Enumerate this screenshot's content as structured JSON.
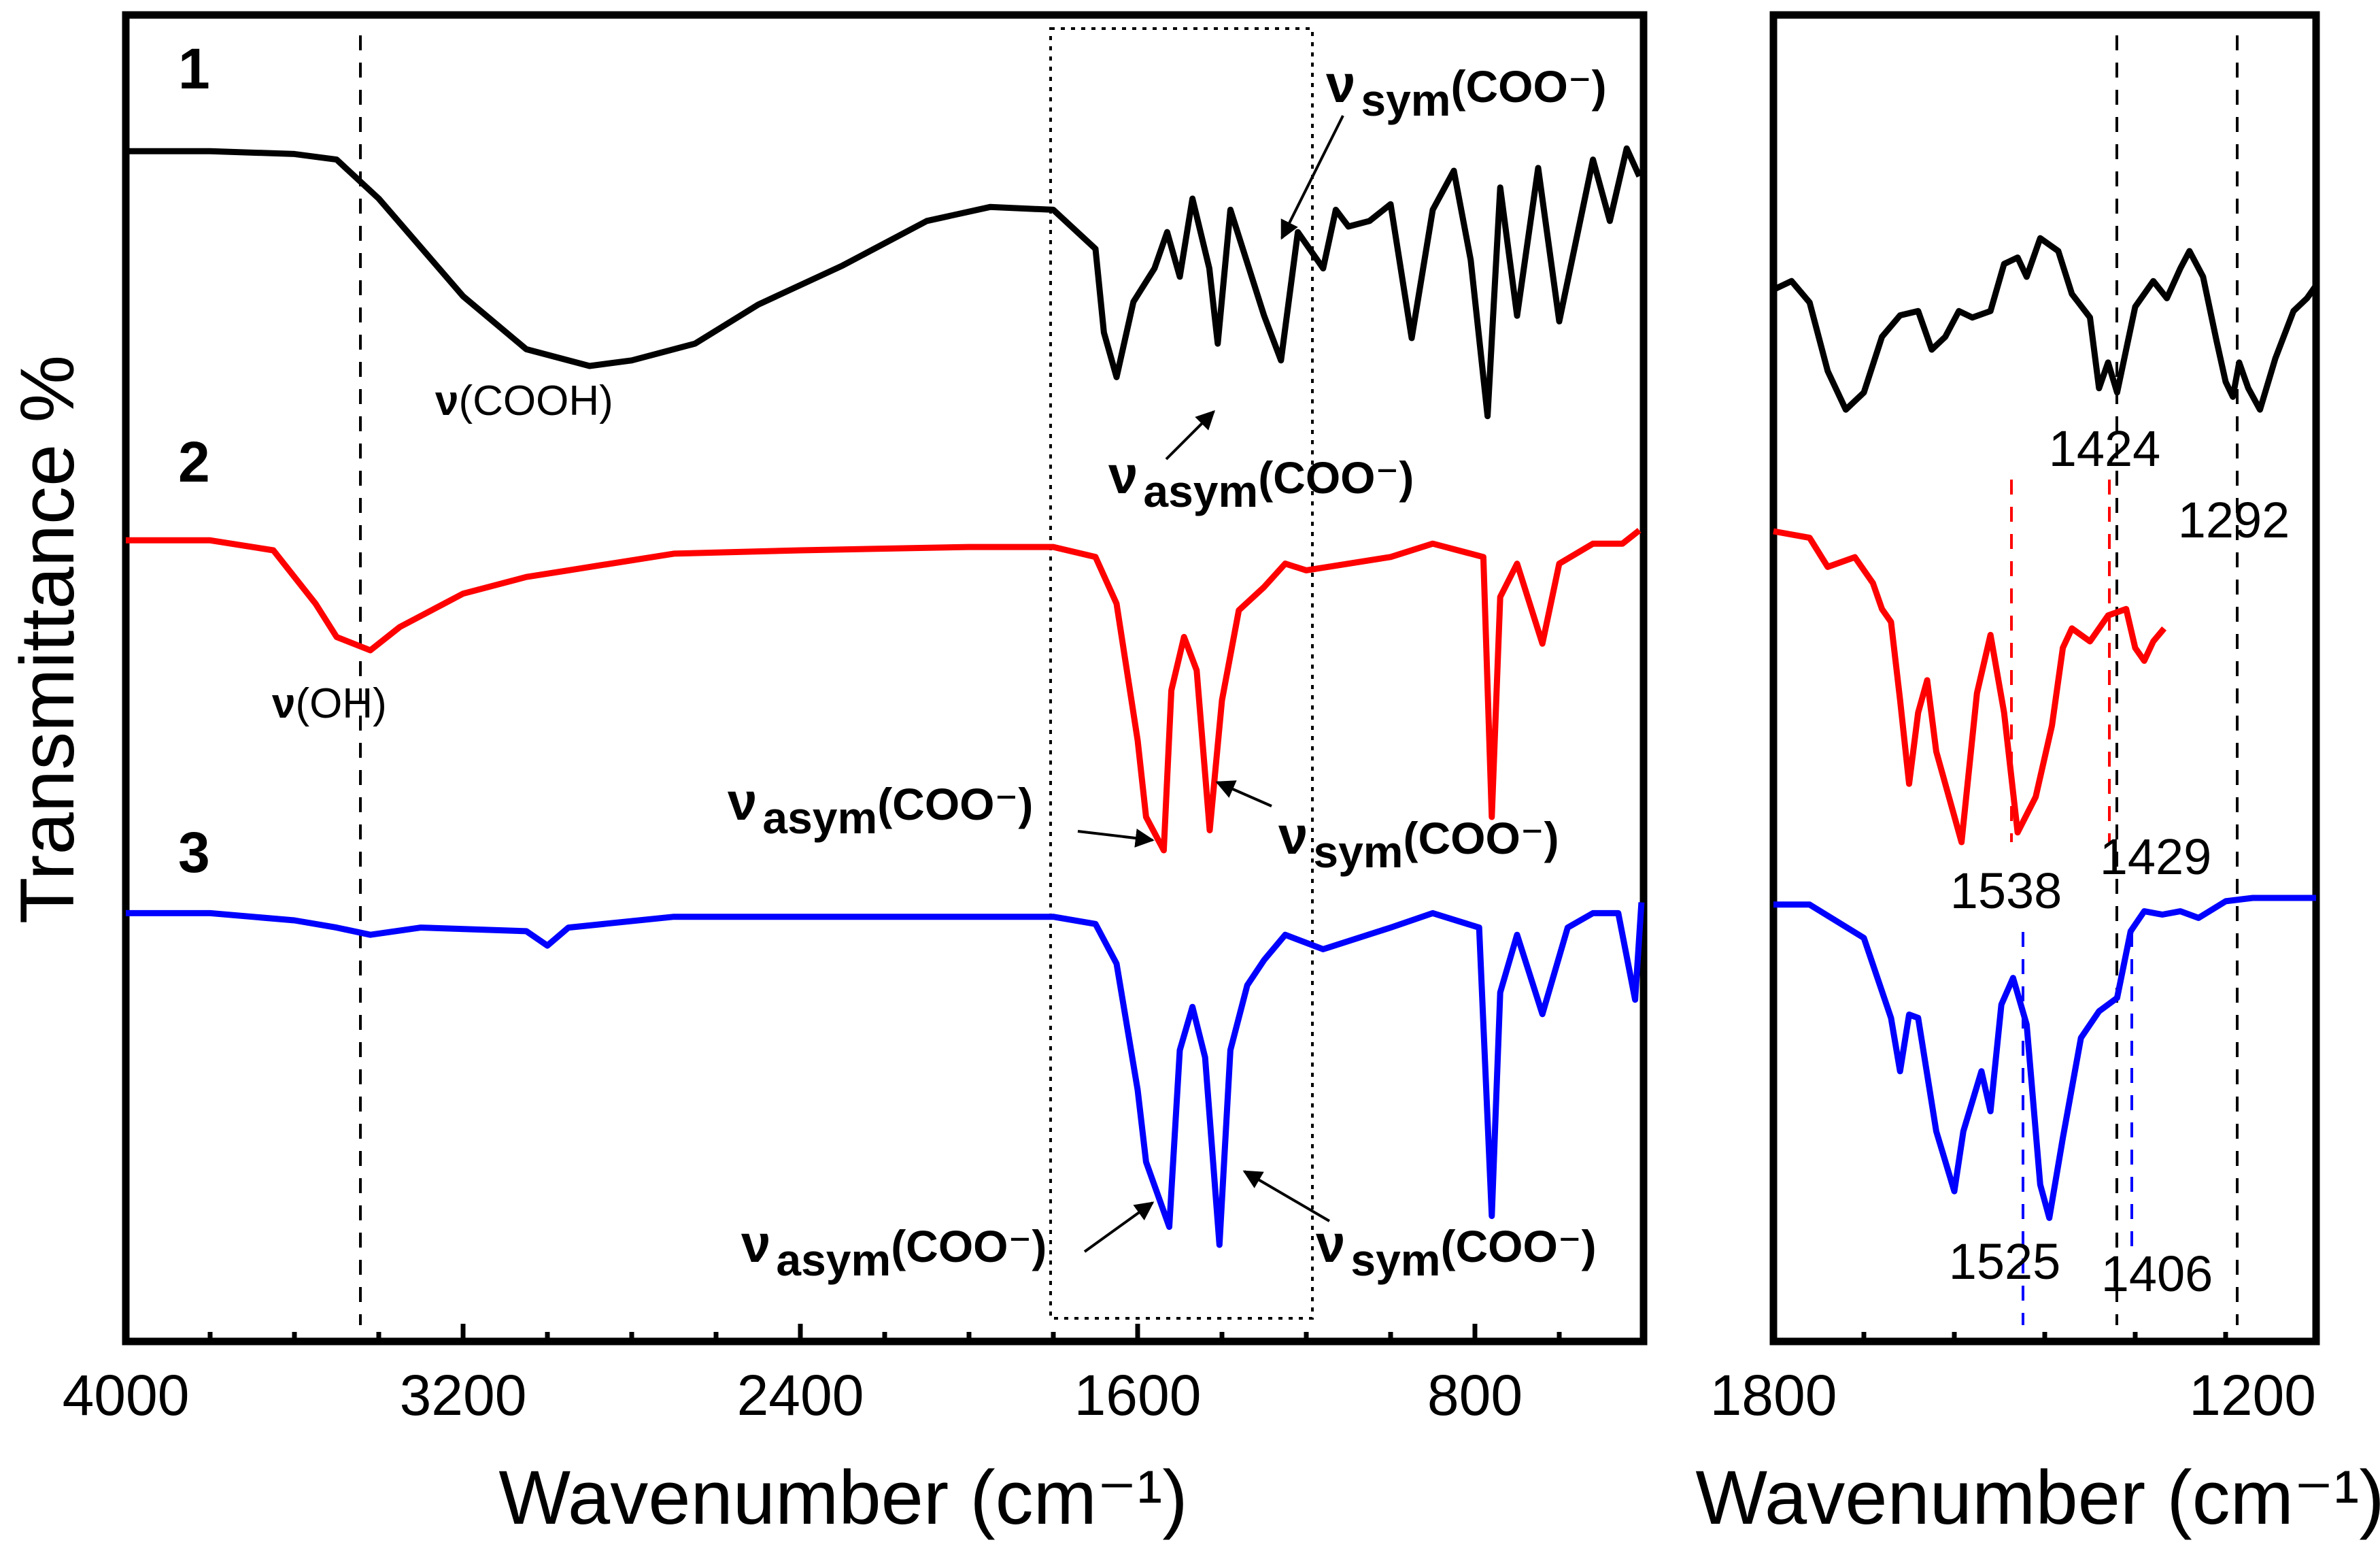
{
  "chart_data": [
    {
      "type": "line",
      "title": "",
      "xlabel": "Wavenumber (cm⁻¹)",
      "ylabel": "Transmittance %",
      "xlim": [
        4000,
        400
      ],
      "x_reversed": true,
      "y_ticks_shown": false,
      "xticks": [
        "4000",
        "3200",
        "2400",
        "1600",
        "800"
      ],
      "series": [
        {
          "name": "1",
          "color": "#000000",
          "points": [
            [
              4000,
              0.97
            ],
            [
              3800,
              0.97
            ],
            [
              3600,
              0.96
            ],
            [
              3500,
              0.94
            ],
            [
              3400,
              0.8
            ],
            [
              3200,
              0.45
            ],
            [
              3050,
              0.26
            ],
            [
              2900,
              0.2
            ],
            [
              2800,
              0.22
            ],
            [
              2650,
              0.28
            ],
            [
              2500,
              0.42
            ],
            [
              2300,
              0.56
            ],
            [
              2100,
              0.72
            ],
            [
              1950,
              0.77
            ],
            [
              1800,
              0.76
            ],
            [
              1700,
              0.62
            ],
            [
              1680,
              0.32
            ],
            [
              1650,
              0.16
            ],
            [
              1610,
              0.43
            ],
            [
              1560,
              0.55
            ],
            [
              1530,
              0.68
            ],
            [
              1500,
              0.52
            ],
            [
              1470,
              0.8
            ],
            [
              1430,
              0.55
            ],
            [
              1410,
              0.28
            ],
            [
              1380,
              0.76
            ],
            [
              1300,
              0.38
            ],
            [
              1260,
              0.22
            ],
            [
              1220,
              0.68
            ],
            [
              1160,
              0.55
            ],
            [
              1130,
              0.76
            ],
            [
              1100,
              0.7
            ],
            [
              1050,
              0.72
            ],
            [
              1000,
              0.78
            ],
            [
              950,
              0.3
            ],
            [
              900,
              0.76
            ],
            [
              850,
              0.9
            ],
            [
              810,
              0.58
            ],
            [
              770,
              0.02
            ],
            [
              740,
              0.84
            ],
            [
              700,
              0.38
            ],
            [
              650,
              0.91
            ],
            [
              600,
              0.36
            ],
            [
              520,
              0.94
            ],
            [
              480,
              0.72
            ],
            [
              440,
              0.98
            ],
            [
              410,
              0.88
            ]
          ]
        },
        {
          "name": "2",
          "color": "#ff0000",
          "points": [
            [
              4000,
              0.93
            ],
            [
              3800,
              0.93
            ],
            [
              3650,
              0.9
            ],
            [
              3550,
              0.74
            ],
            [
              3500,
              0.64
            ],
            [
              3420,
              0.6
            ],
            [
              3350,
              0.67
            ],
            [
              3200,
              0.77
            ],
            [
              3050,
              0.82
            ],
            [
              2950,
              0.84
            ],
            [
              2700,
              0.89
            ],
            [
              2400,
              0.9
            ],
            [
              2000,
              0.91
            ],
            [
              1800,
              0.91
            ],
            [
              1700,
              0.88
            ],
            [
              1650,
              0.74
            ],
            [
              1600,
              0.33
            ],
            [
              1580,
              0.1
            ],
            [
              1538,
              0.0
            ],
            [
              1520,
              0.48
            ],
            [
              1490,
              0.64
            ],
            [
              1460,
              0.54
            ],
            [
              1429,
              0.06
            ],
            [
              1400,
              0.45
            ],
            [
              1360,
              0.72
            ],
            [
              1300,
              0.79
            ],
            [
              1250,
              0.86
            ],
            [
              1200,
              0.84
            ],
            [
              1000,
              0.88
            ],
            [
              900,
              0.92
            ],
            [
              780,
              0.88
            ],
            [
              760,
              0.1
            ],
            [
              740,
              0.76
            ],
            [
              700,
              0.86
            ],
            [
              640,
              0.62
            ],
            [
              600,
              0.86
            ],
            [
              520,
              0.92
            ],
            [
              450,
              0.92
            ],
            [
              410,
              0.96
            ]
          ]
        },
        {
          "name": "3",
          "color": "#0000ff",
          "points": [
            [
              4000,
              0.92
            ],
            [
              3800,
              0.92
            ],
            [
              3600,
              0.9
            ],
            [
              3500,
              0.88
            ],
            [
              3420,
              0.86
            ],
            [
              3300,
              0.88
            ],
            [
              3050,
              0.87
            ],
            [
              3000,
              0.83
            ],
            [
              2950,
              0.88
            ],
            [
              2700,
              0.91
            ],
            [
              2400,
              0.91
            ],
            [
              2000,
              0.91
            ],
            [
              1800,
              0.91
            ],
            [
              1700,
              0.89
            ],
            [
              1650,
              0.78
            ],
            [
              1600,
              0.43
            ],
            [
              1580,
              0.23
            ],
            [
              1525,
              0.05
            ],
            [
              1500,
              0.54
            ],
            [
              1470,
              0.66
            ],
            [
              1440,
              0.52
            ],
            [
              1406,
              0.0
            ],
            [
              1380,
              0.54
            ],
            [
              1340,
              0.72
            ],
            [
              1300,
              0.79
            ],
            [
              1250,
              0.86
            ],
            [
              1160,
              0.82
            ],
            [
              1000,
              0.88
            ],
            [
              900,
              0.92
            ],
            [
              790,
              0.88
            ],
            [
              760,
              0.08
            ],
            [
              740,
              0.7
            ],
            [
              700,
              0.86
            ],
            [
              640,
              0.64
            ],
            [
              580,
              0.88
            ],
            [
              520,
              0.92
            ],
            [
              460,
              0.92
            ],
            [
              420,
              0.68
            ],
            [
              405,
              0.95
            ]
          ]
        }
      ],
      "annotations": [
        {
          "label": "ν",
          "sub": "",
          "group": "(COOH)",
          "series": "1"
        },
        {
          "label": "ν",
          "sub": "sym",
          "group": "(COO⁻)",
          "series": "1"
        },
        {
          "label": "ν",
          "sub": "asym",
          "group": "(COO⁻)",
          "series": "1"
        },
        {
          "label": "ν",
          "sub": "",
          "group": "(OH)",
          "series": "2"
        },
        {
          "label": "ν",
          "sub": "asym",
          "group": "(COO⁻)",
          "series": "2"
        },
        {
          "label": "ν",
          "sub": "sym",
          "group": "(COO⁻)",
          "series": "2"
        },
        {
          "label": "ν",
          "sub": "asym",
          "group": "(COO⁻)",
          "series": "3"
        },
        {
          "label": "ν",
          "sub": "sym",
          "group": "(COO⁻)",
          "series": "3"
        }
      ],
      "reference_lines_x": [
        3450
      ],
      "highlight_box_x": [
        1700,
        1120
      ]
    },
    {
      "type": "line",
      "title": "",
      "xlabel": "Wavenumber (cm⁻¹)",
      "xlim": [
        1800,
        1200
      ],
      "x_reversed": true,
      "xticks": [
        "1800",
        "1200"
      ],
      "peak_labels": [
        {
          "text": "1424",
          "series": "1"
        },
        {
          "text": "1292",
          "series": "1"
        },
        {
          "text": "1538",
          "series": "2"
        },
        {
          "text": "1429",
          "series": "2"
        },
        {
          "text": "1525",
          "series": "3"
        },
        {
          "text": "1406",
          "series": "3"
        }
      ],
      "series": [
        {
          "name": "1",
          "color": "#000000",
          "points": [
            [
              1800,
              0.68
            ],
            [
              1780,
              0.72
            ],
            [
              1760,
              0.62
            ],
            [
              1740,
              0.3
            ],
            [
              1720,
              0.12
            ],
            [
              1700,
              0.2
            ],
            [
              1680,
              0.46
            ],
            [
              1660,
              0.56
            ],
            [
              1640,
              0.58
            ],
            [
              1625,
              0.4
            ],
            [
              1610,
              0.46
            ],
            [
              1595,
              0.58
            ],
            [
              1580,
              0.55
            ],
            [
              1560,
              0.58
            ],
            [
              1545,
              0.8
            ],
            [
              1530,
              0.83
            ],
            [
              1520,
              0.74
            ],
            [
              1505,
              0.92
            ],
            [
              1485,
              0.86
            ],
            [
              1470,
              0.66
            ],
            [
              1450,
              0.55
            ],
            [
              1440,
              0.22
            ],
            [
              1430,
              0.34
            ],
            [
              1420,
              0.2
            ],
            [
              1400,
              0.6
            ],
            [
              1380,
              0.72
            ],
            [
              1365,
              0.64
            ],
            [
              1350,
              0.78
            ],
            [
              1340,
              0.86
            ],
            [
              1325,
              0.74
            ],
            [
              1310,
              0.44
            ],
            [
              1300,
              0.25
            ],
            [
              1292,
              0.18
            ],
            [
              1285,
              0.34
            ],
            [
              1275,
              0.22
            ],
            [
              1262,
              0.12
            ],
            [
              1245,
              0.36
            ],
            [
              1225,
              0.58
            ],
            [
              1210,
              0.64
            ],
            [
              1200,
              0.7
            ]
          ]
        },
        {
          "name": "2",
          "color": "#ff0000",
          "points": [
            [
              1800,
              0.96
            ],
            [
              1760,
              0.94
            ],
            [
              1740,
              0.85
            ],
            [
              1710,
              0.88
            ],
            [
              1690,
              0.8
            ],
            [
              1680,
              0.72
            ],
            [
              1670,
              0.68
            ],
            [
              1660,
              0.44
            ],
            [
              1650,
              0.18
            ],
            [
              1640,
              0.4
            ],
            [
              1630,
              0.5
            ],
            [
              1620,
              0.28
            ],
            [
              1600,
              0.08
            ],
            [
              1592,
              0.0
            ],
            [
              1575,
              0.46
            ],
            [
              1560,
              0.64
            ],
            [
              1545,
              0.4
            ],
            [
              1530,
              0.03
            ],
            [
              1510,
              0.14
            ],
            [
              1492,
              0.36
            ],
            [
              1480,
              0.6
            ],
            [
              1470,
              0.66
            ],
            [
              1450,
              0.62
            ],
            [
              1430,
              0.7
            ],
            [
              1410,
              0.72
            ],
            [
              1400,
              0.6
            ],
            [
              1390,
              0.56
            ],
            [
              1380,
              0.62
            ],
            [
              1368,
              0.66
            ]
          ]
        },
        {
          "name": "3",
          "color": "#0000ff",
          "points": [
            [
              1800,
              0.98
            ],
            [
              1760,
              0.98
            ],
            [
              1730,
              0.93
            ],
            [
              1700,
              0.88
            ],
            [
              1670,
              0.64
            ],
            [
              1660,
              0.48
            ],
            [
              1650,
              0.65
            ],
            [
              1640,
              0.64
            ],
            [
              1620,
              0.3
            ],
            [
              1600,
              0.12
            ],
            [
              1590,
              0.3
            ],
            [
              1570,
              0.48
            ],
            [
              1560,
              0.36
            ],
            [
              1548,
              0.68
            ],
            [
              1535,
              0.76
            ],
            [
              1520,
              0.62
            ],
            [
              1505,
              0.14
            ],
            [
              1495,
              0.04
            ],
            [
              1480,
              0.28
            ],
            [
              1460,
              0.58
            ],
            [
              1440,
              0.66
            ],
            [
              1420,
              0.7
            ],
            [
              1405,
              0.9
            ],
            [
              1390,
              0.96
            ],
            [
              1370,
              0.95
            ],
            [
              1350,
              0.96
            ],
            [
              1330,
              0.94
            ],
            [
              1300,
              0.99
            ],
            [
              1270,
              1.0
            ],
            [
              1250,
              1.0
            ],
            [
              1200,
              1.0
            ]
          ]
        }
      ]
    }
  ],
  "series_labels": [
    "1",
    "2",
    "3"
  ]
}
